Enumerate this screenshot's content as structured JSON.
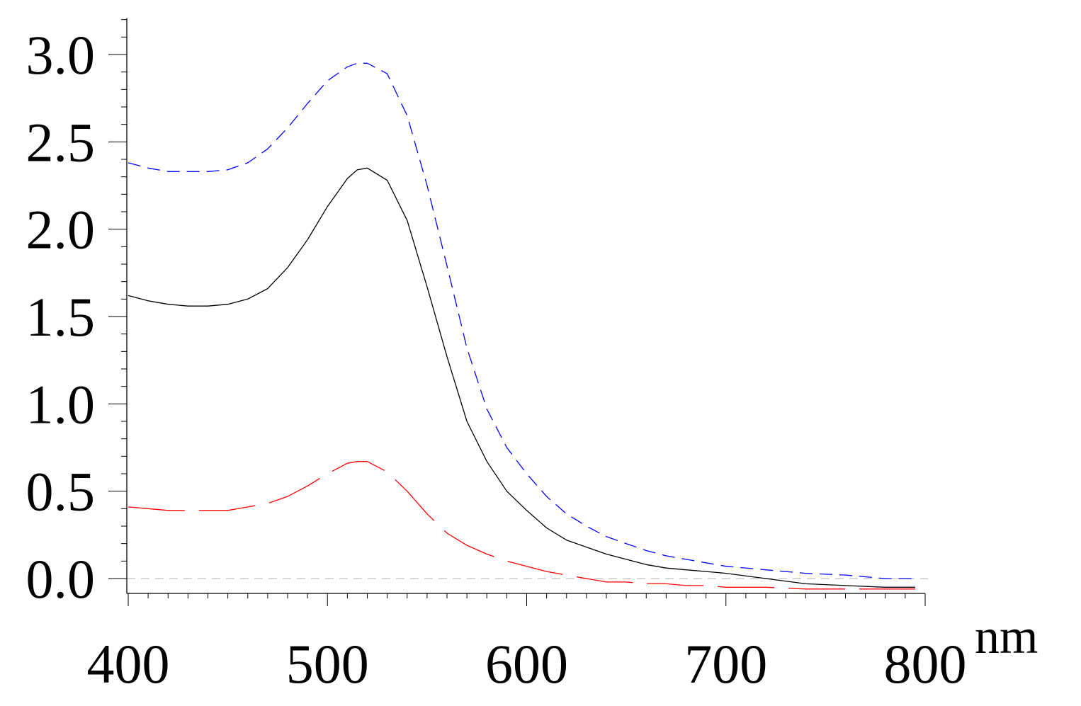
{
  "chart_data": {
    "type": "line",
    "title": "",
    "xlabel": "nm",
    "ylabel": "",
    "xlim": [
      400,
      800
    ],
    "ylim": [
      -0.1,
      3.2
    ],
    "x_ticks": [
      400,
      500,
      600,
      700,
      800
    ],
    "x_tick_labels": [
      "400",
      "500",
      "600",
      "700",
      "800"
    ],
    "y_ticks": [
      0.0,
      0.5,
      1.0,
      1.5,
      2.0,
      2.5,
      3.0
    ],
    "y_tick_labels": [
      "0.0",
      "0.5",
      "1.0",
      "1.5",
      "2.0",
      "2.5",
      "3.0"
    ],
    "y_minor_step": 0.1,
    "x_minor_step": 10,
    "grid": false,
    "zero_reference_line": true,
    "colors": {
      "reference": "#c0c0c0"
    },
    "series": [
      {
        "color": "#0000ff",
        "dash": "18 10",
        "x": [
          400,
          410,
          420,
          430,
          440,
          450,
          460,
          470,
          480,
          490,
          500,
          510,
          515,
          520,
          530,
          540,
          550,
          560,
          570,
          580,
          590,
          600,
          610,
          620,
          630,
          640,
          650,
          660,
          670,
          680,
          690,
          700,
          720,
          740,
          760,
          780,
          795
        ],
        "y": [
          2.38,
          2.35,
          2.33,
          2.33,
          2.33,
          2.34,
          2.38,
          2.46,
          2.58,
          2.72,
          2.85,
          2.93,
          2.95,
          2.95,
          2.89,
          2.65,
          2.25,
          1.79,
          1.32,
          0.97,
          0.75,
          0.6,
          0.47,
          0.37,
          0.3,
          0.24,
          0.2,
          0.16,
          0.13,
          0.11,
          0.09,
          0.07,
          0.05,
          0.03,
          0.02,
          0.0,
          0.0
        ]
      },
      {
        "color": "#000000",
        "dash": "",
        "x": [
          400,
          410,
          420,
          430,
          440,
          450,
          460,
          470,
          480,
          490,
          500,
          510,
          515,
          520,
          530,
          540,
          550,
          560,
          570,
          580,
          590,
          600,
          610,
          620,
          630,
          640,
          650,
          660,
          670,
          680,
          690,
          700,
          720,
          740,
          760,
          780,
          795
        ],
        "y": [
          1.62,
          1.59,
          1.57,
          1.56,
          1.56,
          1.57,
          1.6,
          1.66,
          1.78,
          1.94,
          2.13,
          2.29,
          2.34,
          2.35,
          2.28,
          2.05,
          1.67,
          1.27,
          0.9,
          0.67,
          0.5,
          0.39,
          0.29,
          0.22,
          0.18,
          0.14,
          0.11,
          0.08,
          0.06,
          0.05,
          0.04,
          0.03,
          0.0,
          -0.03,
          -0.04,
          -0.05,
          -0.05
        ]
      },
      {
        "color": "#ff0000",
        "dash": "80 20",
        "x": [
          400,
          410,
          420,
          430,
          440,
          450,
          460,
          470,
          480,
          490,
          500,
          510,
          515,
          520,
          530,
          540,
          550,
          560,
          570,
          580,
          590,
          600,
          610,
          620,
          630,
          640,
          650,
          660,
          670,
          680,
          690,
          700,
          720,
          740,
          760,
          780,
          795
        ],
        "y": [
          0.41,
          0.4,
          0.39,
          0.39,
          0.39,
          0.39,
          0.41,
          0.43,
          0.47,
          0.53,
          0.6,
          0.66,
          0.67,
          0.67,
          0.61,
          0.5,
          0.37,
          0.26,
          0.19,
          0.14,
          0.1,
          0.07,
          0.04,
          0.02,
          0.0,
          -0.02,
          -0.02,
          -0.03,
          -0.03,
          -0.04,
          -0.04,
          -0.05,
          -0.05,
          -0.06,
          -0.06,
          -0.06,
          -0.06
        ]
      }
    ]
  }
}
